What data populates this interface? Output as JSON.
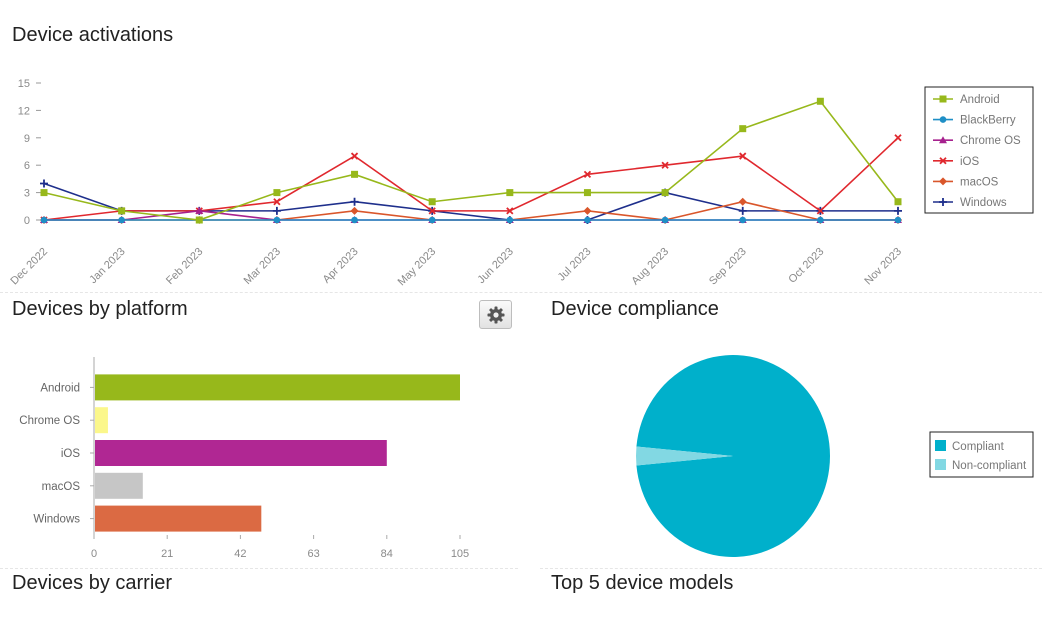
{
  "activations": {
    "title": "Device activations",
    "chart_data": {
      "type": "line",
      "title": "Device activations",
      "categories": [
        "Dec 2022",
        "Jan 2023",
        "Feb 2023",
        "Mar 2023",
        "Apr 2023",
        "May 2023",
        "Jun 2023",
        "Jul 2023",
        "Aug 2023",
        "Sep 2023",
        "Oct 2023",
        "Nov 2023"
      ],
      "ylim": [
        0,
        15
      ],
      "yticks": [
        0,
        3,
        6,
        9,
        12,
        15
      ],
      "legend_position": "right",
      "series": [
        {
          "name": "Android",
          "color": "#97b81b",
          "marker": "square",
          "values": [
            3,
            1,
            0,
            3,
            5,
            2,
            3,
            3,
            3,
            10,
            13,
            2
          ]
        },
        {
          "name": "BlackBerry",
          "color": "#1f8fc6",
          "marker": "circle",
          "values": [
            0,
            0,
            0,
            0,
            0,
            0,
            0,
            0,
            0,
            0,
            0,
            0
          ]
        },
        {
          "name": "Chrome OS",
          "color": "#a6218e",
          "marker": "triangle",
          "values": [
            0,
            0,
            1,
            0,
            0,
            0,
            0,
            0,
            0,
            0,
            0,
            0
          ]
        },
        {
          "name": "iOS",
          "color": "#e0282e",
          "marker": "cross",
          "values": [
            0,
            1,
            1,
            2,
            7,
            1,
            1,
            5,
            6,
            7,
            1,
            9
          ]
        },
        {
          "name": "macOS",
          "color": "#d9562b",
          "marker": "diamond",
          "values": [
            0,
            0,
            0,
            0,
            1,
            0,
            0,
            1,
            0,
            2,
            0,
            0
          ]
        },
        {
          "name": "Windows",
          "color": "#1e2f8c",
          "marker": "plus",
          "values": [
            4,
            1,
            1,
            1,
            2,
            1,
            0,
            0,
            3,
            1,
            1,
            1
          ]
        }
      ]
    }
  },
  "platform": {
    "title": "Devices by platform",
    "settings_icon": "gear-icon",
    "chart_data": {
      "type": "bar",
      "orientation": "horizontal",
      "title": "Devices by platform",
      "categories": [
        "Android",
        "Chrome OS",
        "iOS",
        "macOS",
        "Windows"
      ],
      "values": [
        105,
        4,
        84,
        14,
        48
      ],
      "colors": [
        "#97b81b",
        "#fbf78b",
        "#b02793",
        "#c6c6c6",
        "#db6a43"
      ],
      "xlim": [
        0,
        105
      ],
      "xticks": [
        0,
        21,
        42,
        63,
        84,
        105
      ]
    }
  },
  "compliance": {
    "title": "Device compliance",
    "chart_data": {
      "type": "pie",
      "title": "Device compliance",
      "labels": [
        "Compliant",
        "Non-compliant"
      ],
      "values": [
        97,
        3
      ],
      "colors": [
        "#00b0cb",
        "#82d8e3"
      ],
      "legend_position": "right"
    }
  },
  "carrier": {
    "title": "Devices by carrier"
  },
  "models": {
    "title": "Top 5 device models"
  }
}
